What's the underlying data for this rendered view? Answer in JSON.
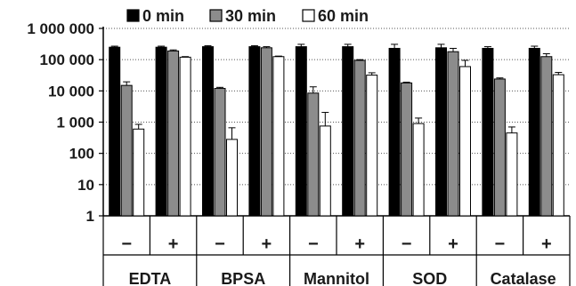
{
  "chart_data": {
    "type": "bar",
    "log_scale": true,
    "ylim": [
      1,
      1000000
    ],
    "y_ticks": [
      {
        "value": 1,
        "label": "1"
      },
      {
        "value": 10,
        "label": "10"
      },
      {
        "value": 100,
        "label": "100"
      },
      {
        "value": 1000,
        "label": "1 000"
      },
      {
        "value": 10000,
        "label": "10 000"
      },
      {
        "value": 100000,
        "label": "100 000"
      },
      {
        "value": 1000000,
        "label": "1 000 000"
      }
    ],
    "grid": "horizontal dotted",
    "legend_position": "top",
    "categories": [
      "−",
      "+",
      "−",
      "+",
      "−",
      "+",
      "−",
      "+",
      "−",
      "+"
    ],
    "groups": [
      "EDTA",
      "BPSA",
      "Mannitol",
      "SOD",
      "Catalase"
    ],
    "series": [
      {
        "name": "0 min",
        "color": "#000000",
        "values": [
          250000,
          250000,
          260000,
          260000,
          260000,
          260000,
          230000,
          240000,
          230000,
          230000
        ],
        "errors": [
          20000,
          20000,
          20000,
          20000,
          50000,
          50000,
          80000,
          70000,
          30000,
          40000
        ]
      },
      {
        "name": "30 min",
        "color": "#8c8c8c",
        "values": [
          15000,
          190000,
          12000,
          240000,
          8500,
          95000,
          18000,
          180000,
          24000,
          125000
        ],
        "errors": [
          4500,
          15000,
          1000,
          20000,
          5000,
          5000,
          1000,
          50000,
          2000,
          30000
        ]
      },
      {
        "name": "60 min",
        "color": "#ffffff",
        "values": [
          600,
          120000,
          280,
          125000,
          750,
          32000,
          900,
          60000,
          450,
          33000
        ],
        "errors": [
          250,
          5000,
          380,
          5000,
          1300,
          6000,
          450,
          35000,
          250,
          6000
        ]
      }
    ]
  }
}
